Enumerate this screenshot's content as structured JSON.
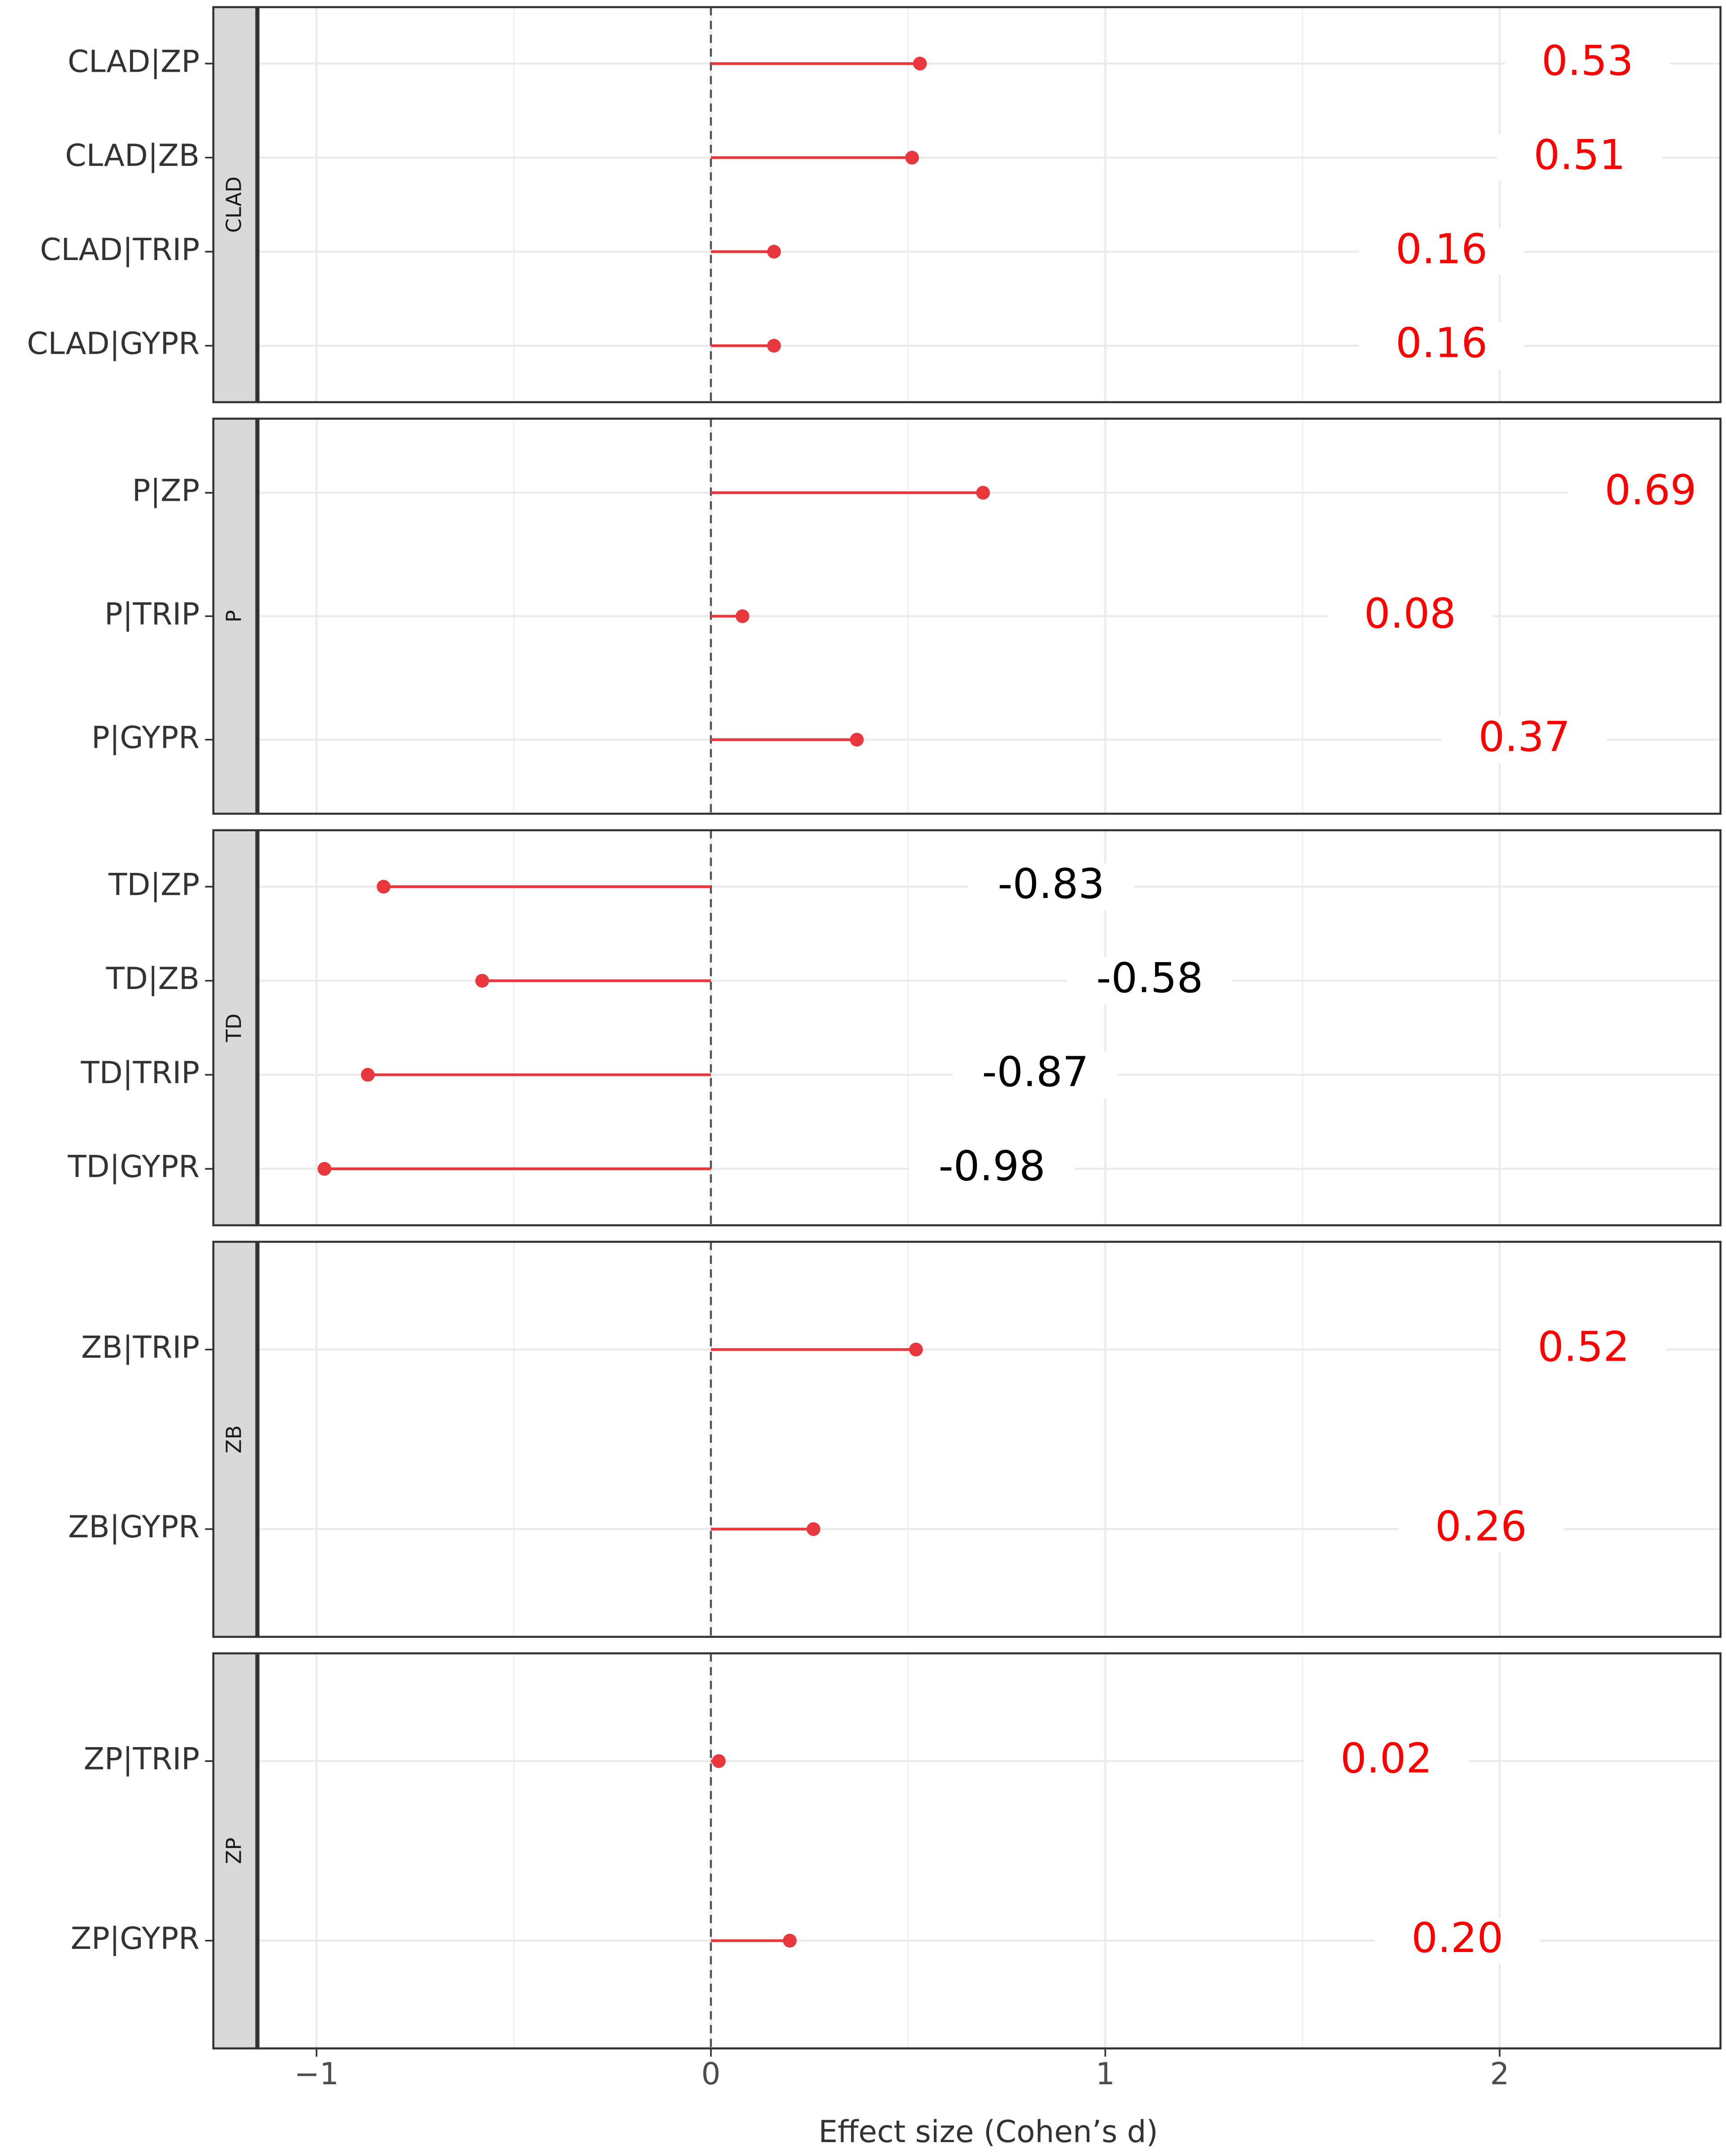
{
  "chart_data": {
    "type": "lollipop",
    "x_label": "Effect size (Cohen’s d)",
    "xlim": [
      -1.15,
      2.56
    ],
    "xticks": [
      {
        "value": -1,
        "label": "−1"
      },
      0,
      1,
      2
    ],
    "reference_line": 0,
    "grid": true,
    "color": "#e8383d",
    "label_color_positive": "#ff0000",
    "label_color_negative": "#000000",
    "facets": [
      {
        "name": "CLAD",
        "categories": [
          "CLAD|ZP",
          "CLAD|ZB",
          "CLAD|TRIP",
          "CLAD|GYPR"
        ],
        "values": [
          0.53,
          0.51,
          0.16,
          0.16
        ]
      },
      {
        "name": "P",
        "categories": [
          "P|ZP",
          "P|TRIP",
          "P|GYPR"
        ],
        "values": [
          0.69,
          0.08,
          0.37
        ]
      },
      {
        "name": "TD",
        "categories": [
          "TD|ZP",
          "TD|ZB",
          "TD|TRIP",
          "TD|GYPR"
        ],
        "values": [
          -0.83,
          -0.58,
          -0.87,
          -0.98
        ]
      },
      {
        "name": "ZB",
        "categories": [
          "ZB|TRIP",
          "ZB|GYPR"
        ],
        "values": [
          0.52,
          0.26
        ]
      },
      {
        "name": "ZP",
        "categories": [
          "ZP|TRIP",
          "ZP|GYPR"
        ],
        "values": [
          0.02,
          0.2
        ],
        "value_labels": [
          "0.02",
          "0.20"
        ]
      }
    ]
  }
}
